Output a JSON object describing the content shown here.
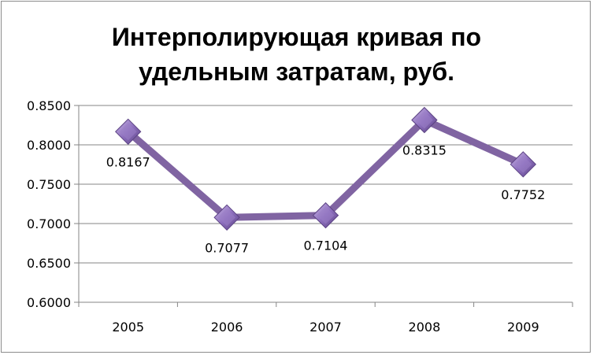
{
  "chart_data": {
    "type": "line",
    "title_lines": [
      "Интерполирующая кривая по",
      "удельным затратам, руб."
    ],
    "categories": [
      "2005",
      "2006",
      "2007",
      "2008",
      "2009"
    ],
    "series": [
      {
        "values": [
          0.8167,
          0.7077,
          0.7104,
          0.8315,
          0.7752
        ]
      }
    ],
    "data_labels": [
      "0.8167",
      "0.7077",
      "0.7104",
      "0.8315",
      "0.7752"
    ],
    "y_ticks": [
      "0.6000",
      "0.6500",
      "0.7000",
      "0.7500",
      "0.8000",
      "0.8500"
    ],
    "ylim": [
      0.6,
      0.85
    ],
    "grid": true,
    "legend": "none",
    "colors": {
      "line": "#8064a2",
      "marker": "#8064a2",
      "grid": "#868686",
      "axis": "#868686"
    }
  }
}
